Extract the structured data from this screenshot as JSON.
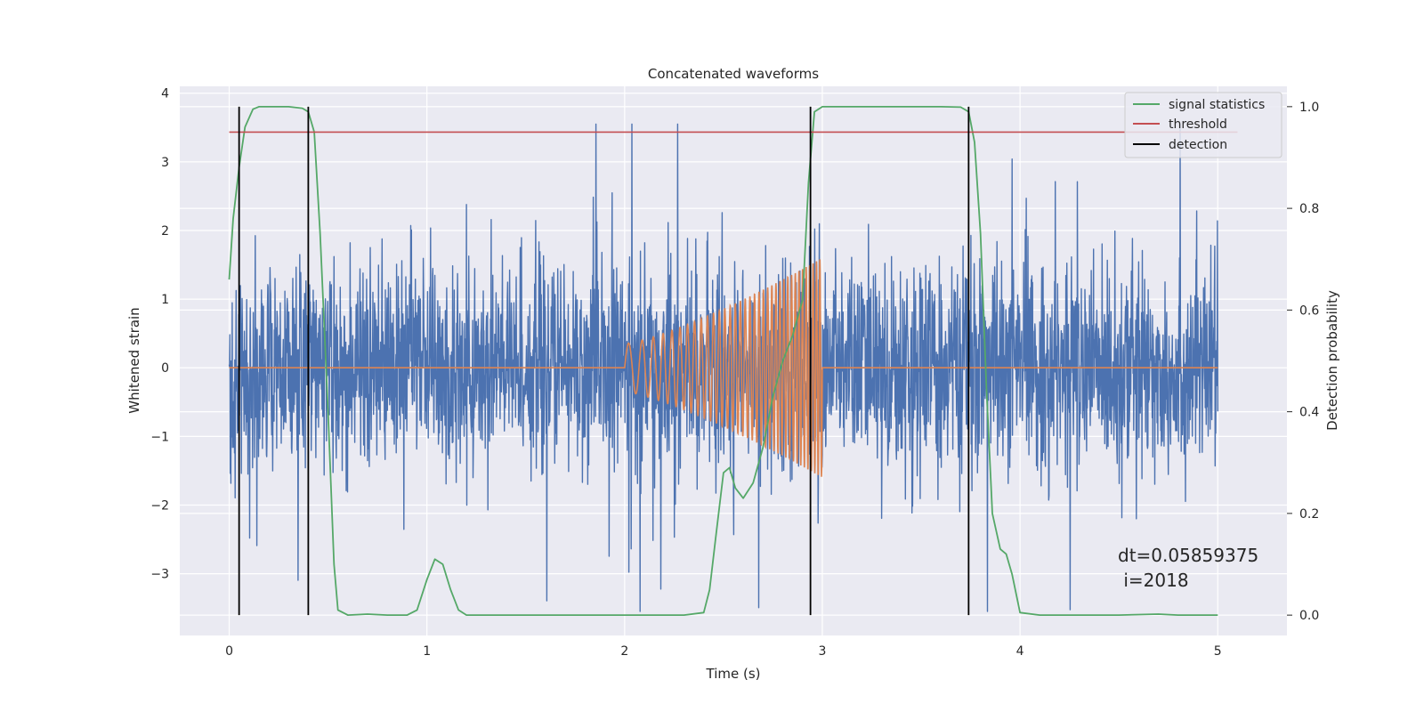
{
  "chart_data": {
    "type": "line",
    "title": "Concatenated waveforms",
    "xlabel": "Time (s)",
    "ylabel": "Whitened strain",
    "y2label": "Detection probability",
    "xlim": [
      -0.25,
      5.35
    ],
    "ylim": [
      -3.9,
      4.1
    ],
    "y2lim": [
      -0.04,
      1.04
    ],
    "xticks": [
      0,
      1,
      2,
      3,
      4,
      5
    ],
    "yticks": [
      -3,
      -2,
      -1,
      0,
      1,
      2,
      3,
      4
    ],
    "y2ticks": [
      0.0,
      0.2,
      0.4,
      0.6,
      0.8,
      1.0
    ],
    "grid": true,
    "legend_position": "top-right",
    "series": [
      {
        "name": "",
        "axis": "left",
        "kind": "noise",
        "color": "#4c72b0",
        "x_range": [
          0,
          5
        ],
        "sigma": 0.72
      },
      {
        "name": "",
        "axis": "left",
        "kind": "chirp",
        "color": "#dd8452",
        "x_range": [
          2,
          3
        ],
        "amp_start": 0.35,
        "amp_end": 1.6,
        "freq_start": 12,
        "freq_end": 60
      },
      {
        "name": "signal statistics",
        "axis": "right",
        "color": "#55a868",
        "x": [
          0.0,
          0.02,
          0.05,
          0.08,
          0.12,
          0.15,
          0.2,
          0.3,
          0.37,
          0.4,
          0.43,
          0.46,
          0.5,
          0.53,
          0.55,
          0.6,
          0.7,
          0.8,
          0.9,
          0.95,
          1.0,
          1.04,
          1.08,
          1.12,
          1.16,
          1.2,
          1.25,
          1.4,
          2.0,
          2.3,
          2.4,
          2.43,
          2.46,
          2.5,
          2.53,
          2.56,
          2.6,
          2.65,
          2.7,
          2.75,
          2.8,
          2.85,
          2.9,
          2.93,
          2.96,
          3.0,
          3.1,
          3.3,
          3.6,
          3.7,
          3.74,
          3.77,
          3.8,
          3.83,
          3.86,
          3.9,
          3.93,
          3.96,
          4.0,
          4.1,
          4.5,
          4.7,
          4.8,
          5.0
        ],
        "y": [
          0.66,
          0.78,
          0.88,
          0.96,
          0.995,
          1.0,
          1.0,
          1.0,
          0.997,
          0.99,
          0.95,
          0.75,
          0.4,
          0.1,
          0.01,
          0.0,
          0.002,
          0.0,
          0.0,
          0.01,
          0.07,
          0.11,
          0.1,
          0.05,
          0.01,
          0.0,
          0.0,
          0.0,
          0.0,
          0.0,
          0.005,
          0.05,
          0.15,
          0.28,
          0.29,
          0.25,
          0.23,
          0.26,
          0.33,
          0.43,
          0.5,
          0.55,
          0.62,
          0.85,
          0.99,
          1.0,
          1.0,
          1.0,
          1.0,
          0.999,
          0.99,
          0.93,
          0.75,
          0.45,
          0.2,
          0.13,
          0.12,
          0.08,
          0.005,
          0.0,
          0.0,
          0.002,
          0.0,
          0.0
        ]
      },
      {
        "name": "threshold",
        "axis": "right",
        "color": "#c44e52",
        "x": [
          0,
          5.1
        ],
        "y": [
          0.95,
          0.95
        ]
      }
    ],
    "detections": {
      "name": "detection",
      "color": "#000000",
      "x": [
        0.05,
        0.4,
        2.94,
        3.74
      ]
    },
    "annotation": {
      "line1": "dt=0.05859375",
      "line2": " i=2018",
      "x": 4.5,
      "y": -2.95
    },
    "legend": [
      {
        "label": "signal statistics",
        "color": "#55a868"
      },
      {
        "label": "threshold",
        "color": "#c44e52"
      },
      {
        "label": "detection",
        "color": "#000000"
      }
    ]
  }
}
